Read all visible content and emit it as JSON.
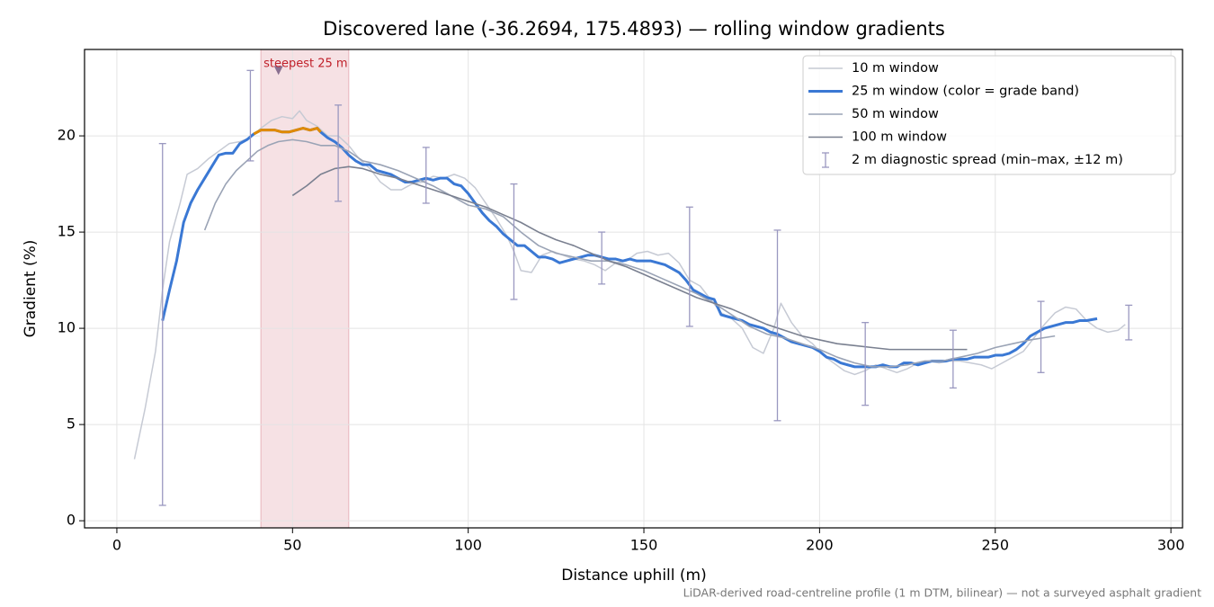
{
  "chart_data": {
    "type": "line",
    "title": "Discovered lane (-36.2694, 175.4893) — rolling window gradients",
    "xlabel": "Distance uphill (m)",
    "ylabel": "Gradient (%)",
    "footnote": "LiDAR-derived road-centreline profile (1 m DTM, bilinear) — not a surveyed asphalt gradient",
    "xlim": [
      -9.2,
      303.3
    ],
    "ylim": [
      -0.37,
      24.49
    ],
    "xticks": [
      0,
      50,
      100,
      150,
      200,
      250,
      300
    ],
    "yticks": [
      0,
      5,
      10,
      15,
      20
    ],
    "grid": true,
    "legend": "upper right",
    "highlight": {
      "x0": 41,
      "x1": 66,
      "label": "steepest 25 m",
      "marker_x": 46,
      "marker_y": 23.4,
      "color": "#e8b4bc",
      "marker_color": "#8a7090",
      "label_color": "#c0202a"
    },
    "series": [
      {
        "name": "10 m window",
        "color": "#c6cad4",
        "width": 1.5,
        "x": [
          5,
          8,
          11,
          13,
          15,
          18,
          20,
          23,
          26,
          29,
          32,
          35,
          38,
          41,
          44,
          47,
          50,
          52,
          54,
          57,
          60,
          63,
          66,
          69,
          72,
          75,
          78,
          81,
          84,
          87,
          90,
          93,
          96,
          99,
          102,
          105,
          108,
          111,
          113,
          115,
          118,
          121,
          124,
          127,
          130,
          133,
          136,
          139,
          142,
          145,
          148,
          151,
          154,
          157,
          160,
          163,
          166,
          169,
          172,
          175,
          178,
          181,
          184,
          187,
          189,
          192,
          195,
          198,
          201,
          204,
          207,
          210,
          213,
          216,
          219,
          222,
          225,
          228,
          231,
          234,
          237,
          240,
          243,
          246,
          249,
          252,
          255,
          258,
          261,
          264,
          267,
          270,
          273,
          276,
          279,
          282,
          285,
          287
        ],
        "values": [
          3.2,
          5.8,
          8.8,
          12,
          14.5,
          16.5,
          18.0,
          18.3,
          18.8,
          19.2,
          19.6,
          19.7,
          19.9,
          20.4,
          20.8,
          21.0,
          20.9,
          21.3,
          20.8,
          20.5,
          20.0,
          20.0,
          19.5,
          18.8,
          18.3,
          17.6,
          17.2,
          17.2,
          17.5,
          17.6,
          17.9,
          17.8,
          18.0,
          17.8,
          17.3,
          16.5,
          15.7,
          14.8,
          14.0,
          13.0,
          12.9,
          13.8,
          14.0,
          13.8,
          13.6,
          13.5,
          13.3,
          13.0,
          13.4,
          13.5,
          13.9,
          14.0,
          13.8,
          13.9,
          13.4,
          12.5,
          12.2,
          11.5,
          10.8,
          10.5,
          10.0,
          9.0,
          8.7,
          10.0,
          11.3,
          10.3,
          9.6,
          9.2,
          8.6,
          8.2,
          7.8,
          7.6,
          7.8,
          8.1,
          7.9,
          7.7,
          7.9,
          8.2,
          8.3,
          8.2,
          8.3,
          8.3,
          8.2,
          8.1,
          7.9,
          8.2,
          8.5,
          8.8,
          9.5,
          10.2,
          10.8,
          11.1,
          11.0,
          10.4,
          10.0,
          9.8,
          9.9,
          10.2
        ]
      },
      {
        "name": "25 m window (color = grade band)",
        "color": "#3a78d4",
        "width": 3,
        "grade_band": {
          "threshold": 20,
          "color": "#e08a00"
        },
        "x": [
          13,
          15,
          17,
          19,
          21,
          23,
          25,
          27,
          29,
          31,
          33,
          35,
          37,
          39,
          41,
          43,
          45,
          47,
          49,
          51,
          53,
          55,
          57,
          58,
          60,
          62,
          64,
          66,
          68,
          70,
          72,
          74,
          76,
          78,
          80,
          82,
          84,
          86,
          88,
          90,
          92,
          94,
          96,
          98,
          100,
          102,
          104,
          106,
          108,
          110,
          112,
          114,
          116,
          118,
          120,
          122,
          124,
          126,
          128,
          130,
          132,
          134,
          136,
          138,
          140,
          142,
          144,
          146,
          148,
          150,
          152,
          154,
          156,
          158,
          160,
          162,
          164,
          166,
          168,
          170,
          172,
          174,
          176,
          178,
          180,
          182,
          184,
          186,
          188,
          190,
          192,
          194,
          196,
          198,
          200,
          202,
          204,
          206,
          208,
          210,
          212,
          214,
          216,
          218,
          220,
          222,
          224,
          226,
          228,
          230,
          232,
          234,
          236,
          238,
          240,
          242,
          244,
          246,
          248,
          250,
          252,
          254,
          256,
          258,
          260,
          262,
          264,
          266,
          268,
          270,
          272,
          274,
          276,
          279
        ],
        "values": [
          10.4,
          12,
          13.5,
          15.5,
          16.5,
          17.2,
          17.8,
          18.4,
          19.0,
          19.1,
          19.1,
          19.6,
          19.8,
          20.1,
          20.3,
          20.3,
          20.3,
          20.2,
          20.2,
          20.3,
          20.4,
          20.3,
          20.4,
          20.2,
          19.9,
          19.7,
          19.4,
          19.0,
          18.7,
          18.5,
          18.5,
          18.2,
          18.1,
          18.0,
          17.8,
          17.6,
          17.6,
          17.7,
          17.8,
          17.7,
          17.8,
          17.8,
          17.5,
          17.4,
          17.0,
          16.5,
          16.0,
          15.6,
          15.3,
          14.9,
          14.6,
          14.3,
          14.3,
          14.0,
          13.7,
          13.7,
          13.6,
          13.4,
          13.5,
          13.6,
          13.7,
          13.8,
          13.8,
          13.7,
          13.6,
          13.6,
          13.5,
          13.6,
          13.5,
          13.5,
          13.5,
          13.4,
          13.3,
          13.1,
          12.9,
          12.5,
          12.0,
          11.8,
          11.6,
          11.5,
          10.7,
          10.6,
          10.5,
          10.4,
          10.2,
          10.1,
          10.0,
          9.8,
          9.7,
          9.5,
          9.3,
          9.2,
          9.1,
          9.0,
          8.8,
          8.5,
          8.4,
          8.2,
          8.1,
          8.0,
          8.0,
          8.0,
          8.0,
          8.1,
          8.0,
          8.0,
          8.2,
          8.2,
          8.1,
          8.2,
          8.3,
          8.3,
          8.3,
          8.4,
          8.4,
          8.4,
          8.5,
          8.5,
          8.5,
          8.6,
          8.6,
          8.7,
          8.9,
          9.2,
          9.6,
          9.8,
          10.0,
          10.1,
          10.2,
          10.3,
          10.3,
          10.4,
          10.4,
          10.5
        ]
      },
      {
        "name": "50 m window",
        "color": "#9aa3b5",
        "width": 1.6,
        "x": [
          25,
          28,
          31,
          34,
          37,
          40,
          43,
          46,
          50,
          54,
          58,
          62,
          66,
          70,
          75,
          80,
          85,
          90,
          95,
          100,
          105,
          110,
          115,
          120,
          125,
          130,
          135,
          140,
          145,
          150,
          155,
          160,
          165,
          170,
          175,
          180,
          185,
          190,
          195,
          200,
          205,
          210,
          215,
          220,
          225,
          230,
          235,
          240,
          245,
          250,
          255,
          260,
          267
        ],
        "values": [
          15.1,
          16.5,
          17.5,
          18.2,
          18.7,
          19.2,
          19.5,
          19.7,
          19.8,
          19.7,
          19.5,
          19.5,
          19.2,
          18.7,
          18.5,
          18.2,
          17.8,
          17.4,
          16.9,
          16.4,
          16.2,
          15.8,
          15.0,
          14.3,
          13.9,
          13.7,
          13.5,
          13.5,
          13.3,
          13.0,
          12.6,
          12.2,
          11.8,
          11.3,
          10.7,
          10.1,
          9.7,
          9.5,
          9.2,
          8.9,
          8.5,
          8.2,
          8.0,
          8.0,
          8.1,
          8.3,
          8.3,
          8.5,
          8.7,
          9.0,
          9.2,
          9.4,
          9.6
        ]
      },
      {
        "name": "100 m window",
        "color": "#7a8090",
        "width": 1.6,
        "x": [
          50,
          54,
          58,
          62,
          66,
          70,
          75,
          80,
          85,
          90,
          95,
          100,
          105,
          110,
          115,
          120,
          125,
          130,
          135,
          140,
          145,
          150,
          155,
          160,
          165,
          170,
          175,
          180,
          185,
          190,
          195,
          200,
          205,
          210,
          215,
          220,
          225,
          230,
          235,
          240,
          242
        ],
        "values": [
          16.9,
          17.4,
          18.0,
          18.3,
          18.4,
          18.3,
          18.0,
          17.8,
          17.5,
          17.2,
          16.9,
          16.6,
          16.3,
          15.9,
          15.5,
          15.0,
          14.6,
          14.3,
          13.9,
          13.5,
          13.2,
          12.8,
          12.4,
          12.0,
          11.6,
          11.3,
          11.0,
          10.6,
          10.2,
          9.9,
          9.6,
          9.4,
          9.2,
          9.1,
          9.0,
          8.9,
          8.9,
          8.9,
          8.9,
          8.9,
          8.9
        ]
      }
    ],
    "errorbars": {
      "name": "2 m diagnostic spread (min–max, ±12 m)",
      "color": "#9a98c0",
      "x": [
        13,
        38,
        63,
        88,
        113,
        138,
        163,
        188,
        213,
        238,
        263,
        288
      ],
      "low": [
        0.8,
        18.7,
        16.6,
        16.5,
        11.5,
        12.3,
        10.1,
        5.2,
        6.0,
        6.9,
        7.7,
        9.4
      ],
      "high": [
        19.6,
        23.4,
        21.6,
        19.4,
        17.5,
        15.0,
        16.3,
        15.1,
        10.3,
        9.9,
        11.4,
        11.2
      ]
    }
  }
}
